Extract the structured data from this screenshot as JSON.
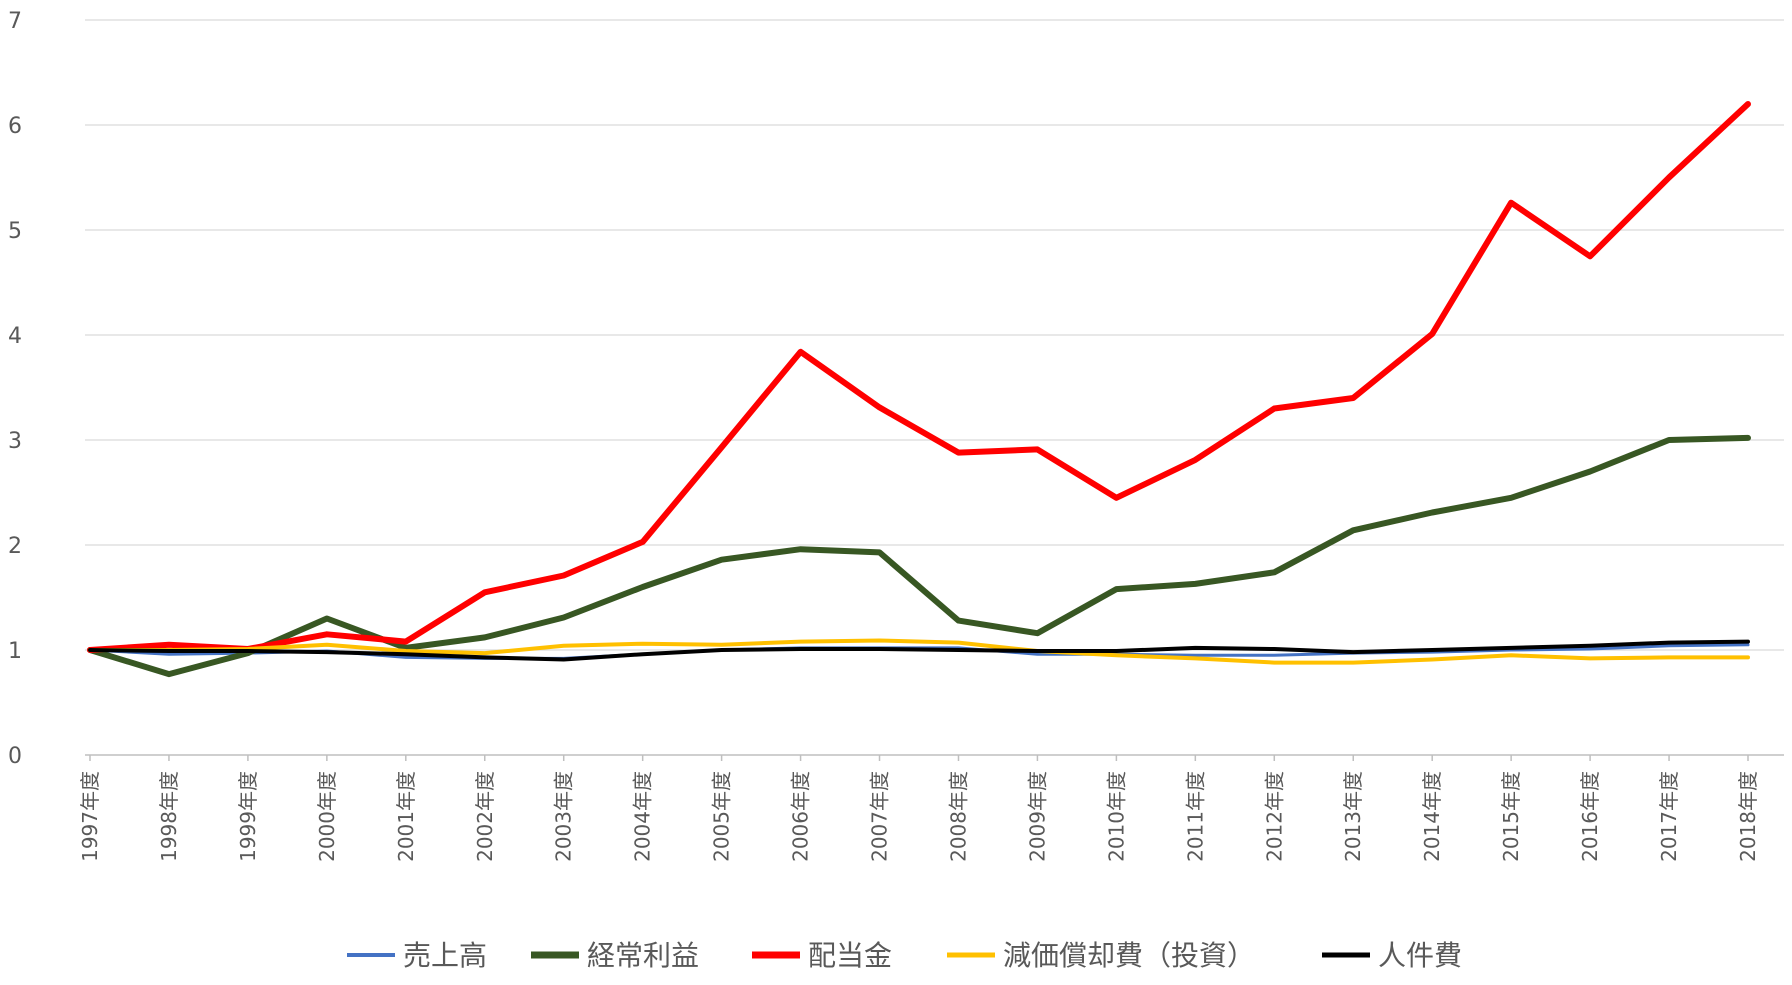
{
  "chart_data": {
    "type": "line",
    "title": "",
    "xlabel": "",
    "ylabel": "",
    "ylim": [
      0,
      7
    ],
    "yticks": [
      "0",
      "1",
      "2",
      "3",
      "4",
      "5",
      "6",
      "7"
    ],
    "grid": true,
    "legend_position": "bottom",
    "categories": [
      "1997年度",
      "1998年度",
      "1999年度",
      "2000年度",
      "2001年度",
      "2002年度",
      "2003年度",
      "2004年度",
      "2005年度",
      "2006年度",
      "2007年度",
      "2008年度",
      "2009年度",
      "2010年度",
      "2011年度",
      "2012年度",
      "2013年度",
      "2014年度",
      "2015年度",
      "2016年度",
      "2017年度",
      "2018年度"
    ],
    "series": [
      {
        "name": "売上高",
        "color": "#4472c4",
        "width": 3,
        "values": [
          1.0,
          0.96,
          0.97,
          0.99,
          0.93,
          0.92,
          0.92,
          0.96,
          1.0,
          1.02,
          1.02,
          1.02,
          0.96,
          0.96,
          0.95,
          0.95,
          0.97,
          0.98,
          1.0,
          1.01,
          1.04,
          1.05
        ]
      },
      {
        "name": "経常利益",
        "color": "#385723",
        "width": 6,
        "values": [
          1.0,
          0.77,
          0.97,
          1.3,
          1.02,
          1.12,
          1.31,
          1.6,
          1.86,
          1.96,
          1.93,
          1.28,
          1.16,
          1.58,
          1.63,
          1.74,
          2.14,
          2.31,
          2.45,
          2.7,
          3.0,
          3.02
        ]
      },
      {
        "name": "配当金",
        "color": "#ff0000",
        "width": 6,
        "values": [
          1.0,
          1.05,
          1.01,
          1.15,
          1.08,
          1.55,
          1.71,
          2.03,
          2.93,
          3.84,
          3.31,
          2.88,
          2.91,
          2.45,
          2.81,
          3.3,
          3.4,
          4.01,
          5.26,
          4.75,
          5.5,
          6.2
        ]
      },
      {
        "name": "減価償却費（投資）",
        "color": "#ffc000",
        "width": 4,
        "values": [
          1.0,
          1.0,
          1.01,
          1.05,
          0.99,
          0.97,
          1.04,
          1.06,
          1.05,
          1.08,
          1.09,
          1.07,
          0.99,
          0.95,
          0.92,
          0.88,
          0.88,
          0.91,
          0.95,
          0.92,
          0.93,
          0.93
        ]
      },
      {
        "name": "人件費",
        "color": "#000000",
        "width": 4,
        "values": [
          1.0,
          0.99,
          0.99,
          0.98,
          0.96,
          0.93,
          0.91,
          0.96,
          1.0,
          1.01,
          1.01,
          1.0,
          0.99,
          0.99,
          1.02,
          1.01,
          0.98,
          1.0,
          1.02,
          1.04,
          1.07,
          1.08
        ]
      }
    ]
  }
}
